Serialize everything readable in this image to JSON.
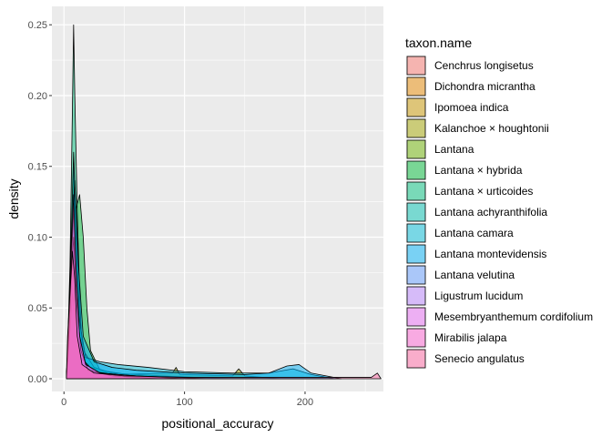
{
  "chart_data": {
    "type": "area",
    "xlabel": "positional_accuracy",
    "ylabel": "density",
    "xlim": [
      -10,
      265
    ],
    "ylim": [
      -0.009,
      0.263
    ],
    "x_ticks": [
      0,
      100,
      200
    ],
    "y_ticks": [
      0.0,
      0.05,
      0.1,
      0.15,
      0.2,
      0.25
    ],
    "x_tick_labels": [
      "0",
      "100",
      "200"
    ],
    "y_tick_labels": [
      "0.00",
      "0.05",
      "0.10",
      "0.15",
      "0.20",
      "0.25"
    ],
    "grid": true,
    "background": "#ebebeb",
    "fill_alpha": 0.5,
    "legend_title": "taxon.name",
    "legend_position": "right",
    "series": [
      {
        "name": "Cenchrus longisetus",
        "color": "#F8766D",
        "points": [
          [
            2,
            0
          ],
          [
            4,
            0.02
          ],
          [
            6,
            0.06
          ],
          [
            8,
            0.11
          ],
          [
            9,
            0.07
          ],
          [
            11,
            0.03
          ],
          [
            14,
            0.01
          ],
          [
            18,
            0.004
          ],
          [
            25,
            0.002
          ],
          [
            40,
            0.001
          ],
          [
            80,
            0
          ]
        ]
      },
      {
        "name": "Dichondra micrantha",
        "color": "#E58700",
        "points": [
          [
            2,
            0
          ],
          [
            4,
            0.02
          ],
          [
            6,
            0.05
          ],
          [
            8,
            0.09
          ],
          [
            10,
            0.06
          ],
          [
            13,
            0.02
          ],
          [
            20,
            0.006
          ],
          [
            30,
            0.003
          ],
          [
            60,
            0.001
          ],
          [
            100,
            0
          ]
        ]
      },
      {
        "name": "Ipomoea indica",
        "color": "#C99800",
        "points": [
          [
            2,
            0
          ],
          [
            4,
            0.03
          ],
          [
            6,
            0.07
          ],
          [
            8,
            0.12
          ],
          [
            10,
            0.08
          ],
          [
            12,
            0.03
          ],
          [
            18,
            0.008
          ],
          [
            25,
            0.004
          ],
          [
            40,
            0.002
          ],
          [
            90,
            0
          ]
        ]
      },
      {
        "name": "Kalanchoe × houghtonii",
        "color": "#A3A500",
        "points": [
          [
            2,
            0
          ],
          [
            5,
            0.02
          ],
          [
            8,
            0.05
          ],
          [
            11,
            0.03
          ],
          [
            16,
            0.01
          ],
          [
            40,
            0.003
          ],
          [
            90,
            0.004
          ],
          [
            93,
            0.008
          ],
          [
            96,
            0.003
          ],
          [
            140,
            0.002
          ],
          [
            145,
            0.007
          ],
          [
            150,
            0.002
          ],
          [
            180,
            0
          ]
        ]
      },
      {
        "name": "Lantana",
        "color": "#6BB100",
        "points": [
          [
            2,
            0
          ],
          [
            4,
            0.03
          ],
          [
            6,
            0.08
          ],
          [
            8,
            0.15
          ],
          [
            10,
            0.09
          ],
          [
            12,
            0.04
          ],
          [
            16,
            0.01
          ],
          [
            25,
            0.004
          ],
          [
            50,
            0.002
          ],
          [
            100,
            0
          ]
        ]
      },
      {
        "name": "Lantana × hybrida",
        "color": "#00BA38",
        "points": [
          [
            2,
            0
          ],
          [
            4,
            0.03
          ],
          [
            7,
            0.09
          ],
          [
            10,
            0.12
          ],
          [
            13,
            0.13
          ],
          [
            16,
            0.1
          ],
          [
            19,
            0.05
          ],
          [
            22,
            0.02
          ],
          [
            30,
            0.006
          ],
          [
            60,
            0.002
          ],
          [
            120,
            0
          ]
        ]
      },
      {
        "name": "Lantana × urticoides",
        "color": "#00BF7D",
        "points": [
          [
            2,
            0
          ],
          [
            3,
            0.02
          ],
          [
            5,
            0.08
          ],
          [
            7,
            0.19
          ],
          [
            8,
            0.25
          ],
          [
            9,
            0.2
          ],
          [
            11,
            0.12
          ],
          [
            13,
            0.06
          ],
          [
            15,
            0.02
          ],
          [
            20,
            0.006
          ],
          [
            40,
            0.002
          ],
          [
            80,
            0
          ]
        ]
      },
      {
        "name": "Lantana achyranthifolia",
        "color": "#00C0AF",
        "points": [
          [
            2,
            0
          ],
          [
            4,
            0.02
          ],
          [
            6,
            0.05
          ],
          [
            9,
            0.08
          ],
          [
            12,
            0.05
          ],
          [
            16,
            0.02
          ],
          [
            25,
            0.008
          ],
          [
            40,
            0.004
          ],
          [
            80,
            0.002
          ],
          [
            140,
            0
          ]
        ]
      },
      {
        "name": "Lantana camara",
        "color": "#00BCD8",
        "points": [
          [
            2,
            0
          ],
          [
            4,
            0.04
          ],
          [
            6,
            0.1
          ],
          [
            8,
            0.16
          ],
          [
            10,
            0.11
          ],
          [
            13,
            0.04
          ],
          [
            18,
            0.015
          ],
          [
            30,
            0.012
          ],
          [
            45,
            0.01
          ],
          [
            70,
            0.008
          ],
          [
            100,
            0.005
          ],
          [
            140,
            0.004
          ],
          [
            170,
            0.004
          ],
          [
            190,
            0.007
          ],
          [
            205,
            0.003
          ],
          [
            225,
            0
          ]
        ]
      },
      {
        "name": "Lantana montevidensis",
        "color": "#00B0F6",
        "points": [
          [
            2,
            0
          ],
          [
            4,
            0.03
          ],
          [
            7,
            0.1
          ],
          [
            9,
            0.14
          ],
          [
            12,
            0.08
          ],
          [
            16,
            0.03
          ],
          [
            25,
            0.012
          ],
          [
            40,
            0.008
          ],
          [
            60,
            0.006
          ],
          [
            100,
            0.004
          ],
          [
            150,
            0.003
          ],
          [
            170,
            0.004
          ],
          [
            185,
            0.009
          ],
          [
            195,
            0.01
          ],
          [
            205,
            0.004
          ],
          [
            230,
            0
          ]
        ]
      },
      {
        "name": "Lantana velutina",
        "color": "#619CFF",
        "points": [
          [
            2,
            0
          ],
          [
            4,
            0.02
          ],
          [
            7,
            0.06
          ],
          [
            10,
            0.04
          ],
          [
            14,
            0.015
          ],
          [
            25,
            0.005
          ],
          [
            50,
            0.002
          ],
          [
            100,
            0
          ]
        ]
      },
      {
        "name": "Ligustrum lucidum",
        "color": "#B983FF",
        "points": [
          [
            2,
            0
          ],
          [
            4,
            0.03
          ],
          [
            6,
            0.08
          ],
          [
            8,
            0.12
          ],
          [
            10,
            0.07
          ],
          [
            13,
            0.03
          ],
          [
            18,
            0.01
          ],
          [
            30,
            0.004
          ],
          [
            60,
            0.002
          ],
          [
            120,
            0
          ]
        ]
      },
      {
        "name": "Mesembryanthemum cordifolium",
        "color": "#E76BF3",
        "points": [
          [
            2,
            0
          ],
          [
            4,
            0.03
          ],
          [
            6,
            0.07
          ],
          [
            8,
            0.1
          ],
          [
            10,
            0.06
          ],
          [
            14,
            0.02
          ],
          [
            20,
            0.006
          ],
          [
            40,
            0.002
          ],
          [
            80,
            0
          ]
        ]
      },
      {
        "name": "Mirabilis jalapa",
        "color": "#FD61D1",
        "points": [
          [
            2,
            0
          ],
          [
            4,
            0.04
          ],
          [
            6,
            0.09
          ],
          [
            8,
            0.13
          ],
          [
            10,
            0.08
          ],
          [
            13,
            0.03
          ],
          [
            18,
            0.01
          ],
          [
            30,
            0.004
          ],
          [
            60,
            0.002
          ],
          [
            100,
            0
          ]
        ]
      },
      {
        "name": "Senecio angulatus",
        "color": "#FF67A4",
        "points": [
          [
            2,
            0
          ],
          [
            3,
            0.03
          ],
          [
            5,
            0.06
          ],
          [
            7,
            0.09
          ],
          [
            9,
            0.07
          ],
          [
            11,
            0.03
          ],
          [
            15,
            0.01
          ],
          [
            25,
            0.004
          ],
          [
            50,
            0.002
          ],
          [
            100,
            0.001
          ],
          [
            255,
            0.001
          ],
          [
            260,
            0.004
          ],
          [
            263,
            0
          ]
        ]
      }
    ]
  }
}
